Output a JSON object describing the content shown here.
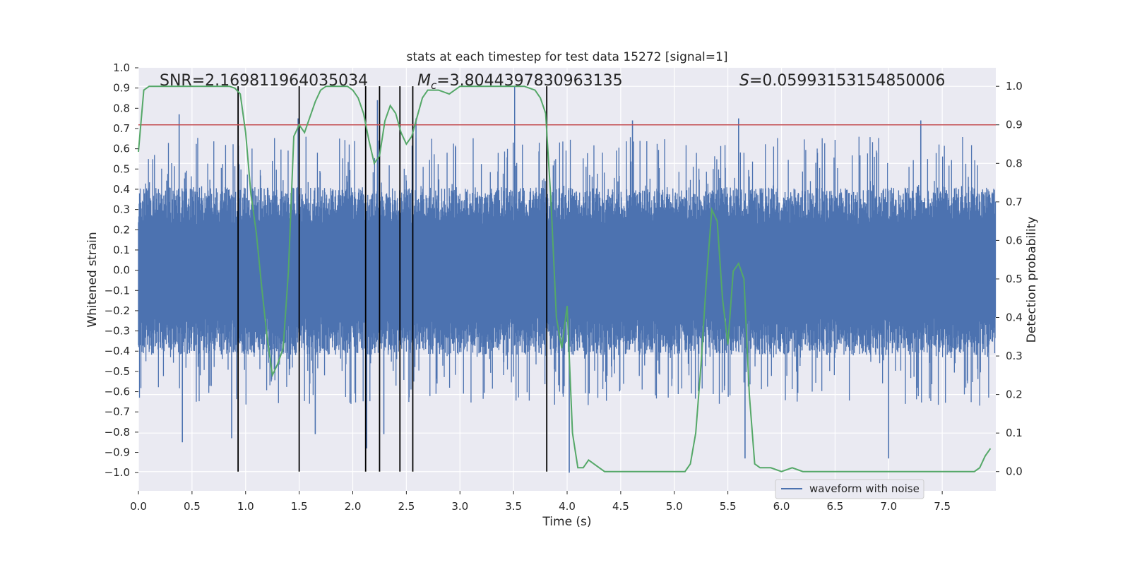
{
  "chart_data": {
    "type": "line",
    "title": "stats at each timestep for test data 15272 [signal=1]",
    "xlabel": "Time (s)",
    "ylabel_left": "Whitened strain",
    "ylabel_right": "Detection probability",
    "xlim": [
      0.0,
      8.0
    ],
    "ylim_left": [
      -1.09,
      1.0
    ],
    "ylim_right": [
      -0.05,
      1.048
    ],
    "x_ticks": [
      0.0,
      0.5,
      1.0,
      1.5,
      2.0,
      2.5,
      3.0,
      3.5,
      4.0,
      4.5,
      5.0,
      5.5,
      6.0,
      6.5,
      7.0,
      7.5
    ],
    "x_tick_labels": [
      "0.0",
      "0.5",
      "1.0",
      "1.5",
      "2.0",
      "2.5",
      "3.0",
      "3.5",
      "4.0",
      "4.5",
      "5.0",
      "5.5",
      "6.0",
      "6.5",
      "7.0",
      "7.5"
    ],
    "y_left_ticks": [
      1.0,
      0.9,
      0.8,
      0.7,
      0.6,
      0.5,
      0.4,
      0.3,
      0.2,
      0.1,
      0.0,
      -0.1,
      -0.2,
      -0.3,
      -0.4,
      -0.5,
      -0.6,
      -0.7,
      -0.8,
      -0.9,
      -1.0
    ],
    "y_left_tick_labels": [
      "1.0",
      "0.9",
      "0.8",
      "0.7",
      "0.6",
      "0.5",
      "0.4",
      "0.3",
      "0.2",
      "0.1",
      "0.0",
      "−0.1",
      "−0.2",
      "−0.3",
      "−0.4",
      "−0.5",
      "−0.6",
      "−0.7",
      "−0.8",
      "−0.9",
      "−1.0"
    ],
    "y_right_ticks": [
      1.0,
      0.9,
      0.8,
      0.7,
      0.6,
      0.5,
      0.4,
      0.3,
      0.2,
      0.1,
      0.0
    ],
    "y_right_tick_labels": [
      "1.0",
      "0.9",
      "0.8",
      "0.7",
      "0.6",
      "0.5",
      "0.4",
      "0.3",
      "0.2",
      "0.1",
      "0.0"
    ],
    "stats": {
      "snr": "SNR=2.169811964035034",
      "mc_symbol": "M",
      "mc_subscript": "c",
      "mc_value": "=3.8044397830963135",
      "s_symbol": "S",
      "s_value": "=0.05993153154850006"
    },
    "legend": {
      "label": "waveform with noise",
      "location": "lower right"
    },
    "grid": true,
    "threshold_probability": 0.9,
    "detection_times": [
      0.93,
      1.5,
      2.12,
      2.25,
      2.44,
      2.56,
      3.81
    ],
    "series": [
      {
        "name": "waveform with noise",
        "kind": "noise-band",
        "color": "#4c72b0",
        "envelope_typical": [
          -0.42,
          0.41
        ],
        "envelope_extremes": [
          -1.0,
          0.91
        ],
        "spikes": [
          [
            0.38,
            0.77
          ],
          [
            0.41,
            -0.85
          ],
          [
            0.87,
            -0.83
          ],
          [
            1.49,
            0.75
          ],
          [
            1.65,
            -0.81
          ],
          [
            2.13,
            -0.88
          ],
          [
            2.23,
            0.84
          ],
          [
            2.29,
            -0.81
          ],
          [
            2.59,
            0.75
          ],
          [
            3.51,
            0.91
          ],
          [
            4.02,
            -1.0
          ],
          [
            4.61,
            0.74
          ],
          [
            5.6,
            0.75
          ],
          [
            5.66,
            -0.93
          ],
          [
            7.0,
            -0.93
          ],
          [
            7.3,
            0.74
          ]
        ]
      },
      {
        "name": "",
        "kind": "probability",
        "color": "#55a868",
        "axis": "right",
        "x": [
          0.0,
          0.05,
          0.1,
          0.2,
          0.3,
          0.5,
          0.7,
          0.85,
          0.9,
          0.95,
          1.0,
          1.05,
          1.1,
          1.15,
          1.2,
          1.25,
          1.3,
          1.35,
          1.4,
          1.45,
          1.5,
          1.55,
          1.6,
          1.65,
          1.7,
          1.75,
          1.8,
          1.85,
          1.9,
          1.95,
          2.0,
          2.05,
          2.1,
          2.15,
          2.2,
          2.25,
          2.3,
          2.35,
          2.4,
          2.45,
          2.5,
          2.55,
          2.6,
          2.65,
          2.7,
          2.8,
          2.9,
          3.0,
          3.2,
          3.4,
          3.5,
          3.6,
          3.7,
          3.75,
          3.8,
          3.85,
          3.9,
          3.95,
          4.0,
          4.05,
          4.1,
          4.15,
          4.2,
          4.25,
          4.3,
          4.35,
          4.4,
          4.5,
          4.6,
          4.7,
          4.8,
          4.9,
          5.0,
          5.1,
          5.15,
          5.2,
          5.25,
          5.3,
          5.35,
          5.4,
          5.45,
          5.5,
          5.55,
          5.6,
          5.65,
          5.7,
          5.75,
          5.8,
          5.9,
          6.0,
          6.1,
          6.2,
          6.3,
          6.5,
          6.8,
          7.0,
          7.2,
          7.5,
          7.7,
          7.8,
          7.85,
          7.9,
          7.95
        ],
        "values": [
          0.83,
          0.99,
          1.0,
          1.0,
          1.0,
          1.0,
          1.0,
          1.0,
          0.995,
          0.98,
          0.88,
          0.72,
          0.62,
          0.48,
          0.35,
          0.25,
          0.28,
          0.32,
          0.52,
          0.87,
          0.9,
          0.88,
          0.92,
          0.96,
          0.99,
          1.0,
          1.0,
          1.0,
          1.0,
          1.0,
          0.99,
          0.97,
          0.93,
          0.86,
          0.8,
          0.82,
          0.91,
          0.95,
          0.93,
          0.88,
          0.85,
          0.87,
          0.92,
          0.97,
          0.99,
          0.99,
          0.98,
          1.0,
          1.0,
          1.0,
          1.0,
          1.0,
          0.99,
          0.97,
          0.93,
          0.7,
          0.4,
          0.32,
          0.43,
          0.1,
          0.01,
          0.01,
          0.03,
          0.02,
          0.01,
          0.0,
          0.0,
          0.0,
          0.0,
          0.0,
          0.0,
          0.0,
          0.0,
          0.0,
          0.02,
          0.1,
          0.28,
          0.5,
          0.68,
          0.65,
          0.45,
          0.33,
          0.52,
          0.54,
          0.5,
          0.2,
          0.02,
          0.01,
          0.01,
          0.0,
          0.01,
          0.0,
          0.0,
          0.0,
          0.0,
          0.0,
          0.0,
          0.0,
          0.0,
          0.0,
          0.01,
          0.04,
          0.06
        ]
      }
    ]
  }
}
